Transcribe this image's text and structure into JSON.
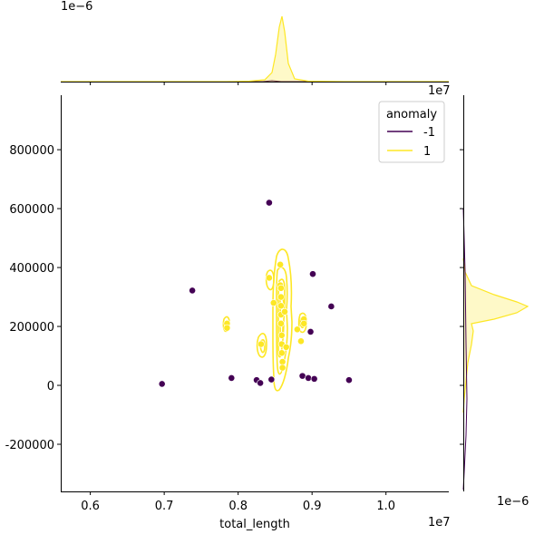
{
  "chart_data": {
    "type": "scatter",
    "title": "",
    "xlabel": "total_length",
    "ylabel": "",
    "x_offset_label": "1e7",
    "y_offset_label": "1e7",
    "top_margin_offset_label": "1e−6",
    "right_margin_offset_label": "1e−6",
    "xlim": [
      0.56,
      1.085
    ],
    "ylim": [
      -360000,
      985000
    ],
    "x_ticks": [
      0.6,
      0.7,
      0.8,
      0.9,
      1.0
    ],
    "x_tick_labels": [
      "0.6",
      "0.7",
      "0.8",
      "0.9",
      "1.0"
    ],
    "y_ticks": [
      -200000,
      0,
      200000,
      400000,
      600000,
      800000
    ],
    "y_tick_labels": [
      "-200000",
      "0",
      "200000",
      "400000",
      "600000",
      "800000"
    ],
    "grid": false,
    "legend": {
      "title": "anomaly",
      "placement": "top-right",
      "entries": [
        {
          "label": "-1",
          "color": "#440154"
        },
        {
          "label": "1",
          "color": "#fde725"
        }
      ]
    },
    "series": [
      {
        "name": "-1",
        "color": "#440154",
        "points": [
          [
            0.697,
            5000
          ],
          [
            0.738,
            322000
          ],
          [
            0.791,
            25000
          ],
          [
            0.825,
            18000
          ],
          [
            0.83,
            8000
          ],
          [
            0.842,
            620000
          ],
          [
            0.845,
            20000
          ],
          [
            0.887,
            32000
          ],
          [
            0.895,
            25000
          ],
          [
            0.898,
            182000
          ],
          [
            0.901,
            378000
          ],
          [
            0.903,
            22000
          ],
          [
            0.926,
            268000
          ],
          [
            0.95,
            18000
          ]
        ]
      },
      {
        "name": "1",
        "color": "#fde725",
        "points": [
          [
            0.785,
            210000
          ],
          [
            0.785,
            195000
          ],
          [
            0.831,
            140000
          ],
          [
            0.842,
            365000
          ],
          [
            0.848,
            280000
          ],
          [
            0.857,
            410000
          ],
          [
            0.857,
            340000
          ],
          [
            0.858,
            330000
          ],
          [
            0.858,
            300000
          ],
          [
            0.858,
            270000
          ],
          [
            0.858,
            240000
          ],
          [
            0.858,
            210000
          ],
          [
            0.859,
            170000
          ],
          [
            0.859,
            140000
          ],
          [
            0.859,
            110000
          ],
          [
            0.86,
            80000
          ],
          [
            0.86,
            60000
          ],
          [
            0.863,
            250000
          ],
          [
            0.865,
            130000
          ],
          [
            0.88,
            190000
          ],
          [
            0.885,
            150000
          ],
          [
            0.889,
            225000
          ],
          [
            0.889,
            210000
          ]
        ]
      }
    ]
  }
}
